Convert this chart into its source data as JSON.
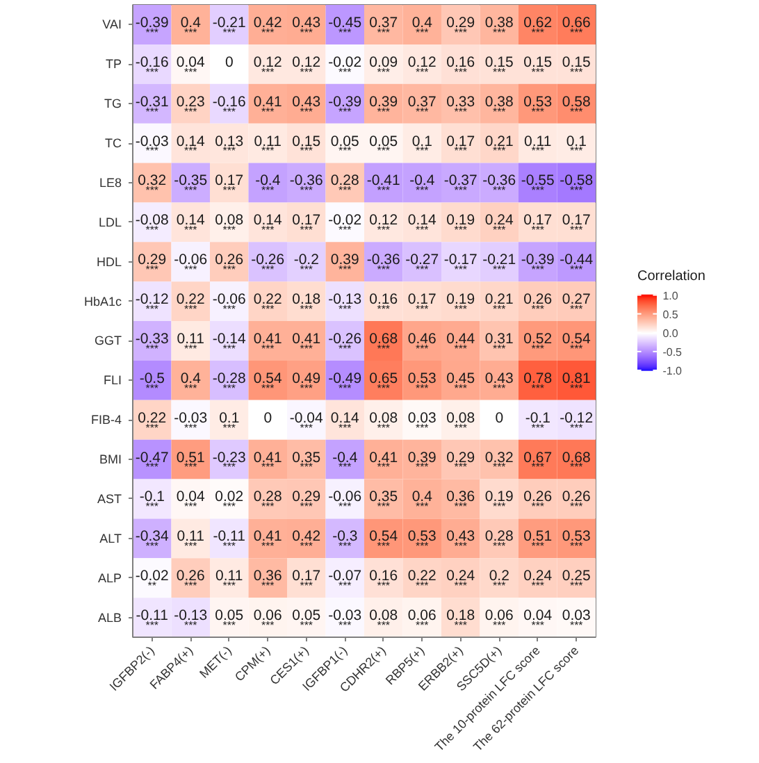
{
  "chart_data": {
    "type": "heatmap",
    "clabel": "Correlation",
    "clim": [
      -1,
      1
    ],
    "cticks": [
      {
        "value": 1,
        "label": "1.0"
      },
      {
        "value": 0.5,
        "label": "0.5"
      },
      {
        "value": 0,
        "label": "0.0"
      },
      {
        "value": -0.5,
        "label": "-0.5"
      },
      {
        "value": -1,
        "label": "-1.0"
      }
    ],
    "categories": [
      "IGFBP2(-)",
      "FABP4(+)",
      "MET(-)",
      "CPM(+)",
      "CES1(+)",
      "IGFBP1(-)",
      "CDHR2(+)",
      "RBP5(+)",
      "ERBB2(+)",
      "SSC5D(+)",
      "The 10-protein LFC score",
      "The 62-protein LFC score"
    ],
    "y_categories": [
      "VAI",
      "TP",
      "TG",
      "TC",
      "LE8",
      "LDL",
      "HDL",
      "HbA1c",
      "GGT",
      "FLI",
      "FIB-4",
      "BMI",
      "AST",
      "ALT",
      "ALP",
      "ALB"
    ],
    "cells": [
      [
        -0.39,
        0.4,
        -0.21,
        0.42,
        0.43,
        -0.45,
        0.37,
        0.4,
        0.29,
        0.38,
        0.62,
        0.66
      ],
      [
        -0.16,
        0.04,
        0,
        0.12,
        0.12,
        -0.02,
        0.09,
        0.12,
        0.16,
        0.15,
        0.15,
        0.15
      ],
      [
        -0.31,
        0.23,
        -0.16,
        0.41,
        0.43,
        -0.39,
        0.39,
        0.37,
        0.33,
        0.38,
        0.53,
        0.58
      ],
      [
        -0.03,
        0.14,
        0.13,
        0.11,
        0.15,
        0.05,
        0.05,
        0.1,
        0.17,
        0.21,
        0.11,
        0.1
      ],
      [
        0.32,
        -0.35,
        0.17,
        -0.4,
        -0.36,
        0.28,
        -0.41,
        -0.4,
        -0.37,
        -0.36,
        -0.55,
        -0.58
      ],
      [
        -0.08,
        0.14,
        0.08,
        0.14,
        0.17,
        -0.02,
        0.12,
        0.14,
        0.19,
        0.24,
        0.17,
        0.17
      ],
      [
        0.29,
        -0.06,
        0.26,
        -0.26,
        -0.2,
        0.39,
        -0.36,
        -0.27,
        -0.17,
        -0.21,
        -0.39,
        -0.44
      ],
      [
        -0.12,
        0.22,
        -0.06,
        0.22,
        0.18,
        -0.13,
        0.16,
        0.17,
        0.19,
        0.21,
        0.26,
        0.27
      ],
      [
        -0.33,
        0.11,
        -0.14,
        0.41,
        0.41,
        -0.26,
        0.68,
        0.46,
        0.44,
        0.31,
        0.52,
        0.54
      ],
      [
        -0.5,
        0.4,
        -0.28,
        0.54,
        0.49,
        -0.49,
        0.65,
        0.53,
        0.45,
        0.43,
        0.78,
        0.81
      ],
      [
        0.22,
        -0.03,
        0.1,
        0,
        -0.04,
        0.14,
        0.08,
        0.03,
        0.08,
        0,
        -0.1,
        -0.12
      ],
      [
        -0.47,
        0.51,
        -0.23,
        0.41,
        0.35,
        -0.4,
        0.41,
        0.39,
        0.29,
        0.32,
        0.67,
        0.68
      ],
      [
        -0.1,
        0.04,
        0.02,
        0.28,
        0.29,
        -0.06,
        0.35,
        0.4,
        0.36,
        0.19,
        0.26,
        0.26
      ],
      [
        -0.34,
        0.11,
        -0.11,
        0.41,
        0.42,
        -0.3,
        0.54,
        0.53,
        0.43,
        0.28,
        0.51,
        0.53
      ],
      [
        -0.02,
        0.26,
        0.11,
        0.36,
        0.17,
        -0.07,
        0.16,
        0.22,
        0.24,
        0.2,
        0.24,
        0.25
      ],
      [
        -0.11,
        -0.13,
        0.05,
        0.06,
        0.05,
        -0.03,
        0.08,
        0.06,
        0.18,
        0.06,
        0.04,
        0.03
      ]
    ],
    "cell_labels": [
      [
        "-0.39\n***",
        "0.4\n***",
        "-0.21\n***",
        "0.42\n***",
        "0.43\n***",
        "-0.45\n***",
        "0.37\n***",
        "0.4\n***",
        "0.29\n***",
        "0.38\n***",
        "0.62\n***",
        "0.66\n***"
      ],
      [
        "-0.16\n***",
        "0.04\n***",
        "0",
        "0.12\n***",
        "0.12\n***",
        "-0.02\n***",
        "0.09\n***",
        "0.12\n***",
        "0.16\n***",
        "0.15\n***",
        "0.15\n***",
        "0.15\n***"
      ],
      [
        "-0.31\n***",
        "0.23\n***",
        "-0.16\n***",
        "0.41\n***",
        "0.43\n***",
        "-0.39\n***",
        "0.39\n***",
        "0.37\n***",
        "0.33\n***",
        "0.38\n***",
        "0.53\n***",
        "0.58\n***"
      ],
      [
        "-0.03\n***",
        "0.14\n***",
        "0.13\n***",
        "0.11\n***",
        "0.15\n***",
        "0.05\n***",
        "0.05\n***",
        "0.1\n***",
        "0.17\n***",
        "0.21\n***",
        "0.11\n***",
        "0.1\n***"
      ],
      [
        "0.32\n***",
        "-0.35\n***",
        "0.17\n***",
        "-0.4\n***",
        "-0.36\n***",
        "0.28\n***",
        "-0.41\n***",
        "-0.4\n***",
        "-0.37\n***",
        "-0.36\n***",
        "-0.55\n***",
        "-0.58\n***"
      ],
      [
        "-0.08\n***",
        "0.14\n***",
        "0.08\n***",
        "0.14\n***",
        "0.17\n***",
        "-0.02\n***",
        "0.12\n***",
        "0.14\n***",
        "0.19\n***",
        "0.24\n***",
        "0.17\n***",
        "0.17\n***"
      ],
      [
        "0.29\n***",
        "-0.06\n***",
        "0.26\n***",
        "-0.26\n***",
        "-0.2\n***",
        "0.39\n***",
        "-0.36\n***",
        "-0.27\n***",
        "-0.17\n***",
        "-0.21\n***",
        "-0.39\n***",
        "-0.44\n***"
      ],
      [
        "-0.12\n***",
        "0.22\n***",
        "-0.06\n***",
        "0.22\n***",
        "0.18\n***",
        "-0.13\n***",
        "0.16\n***",
        "0.17\n***",
        "0.19\n***",
        "0.21\n***",
        "0.26\n***",
        "0.27\n***"
      ],
      [
        "-0.33\n***",
        "0.11\n***",
        "-0.14\n***",
        "0.41\n***",
        "0.41\n***",
        "-0.26\n***",
        "0.68\n***",
        "0.46\n***",
        "0.44\n***",
        "0.31\n***",
        "0.52\n***",
        "0.54\n***"
      ],
      [
        "-0.5\n***",
        "0.4\n***",
        "-0.28\n***",
        "0.54\n***",
        "0.49\n***",
        "-0.49\n***",
        "0.65\n***",
        "0.53\n***",
        "0.45\n***",
        "0.43\n***",
        "0.78\n***",
        "0.81\n***"
      ],
      [
        "0.22\n***",
        "-0.03\n***",
        "0.1\n***",
        "0",
        "-0.04\n***",
        "0.14\n***",
        "0.08\n***",
        "0.03\n***",
        "0.08\n***",
        "0",
        "-0.1\n***",
        "-0.12\n***"
      ],
      [
        "-0.47\n***",
        "0.51\n***",
        "-0.23\n***",
        "0.41\n***",
        "0.35\n***",
        "-0.4\n***",
        "0.41\n***",
        "0.39\n***",
        "0.29\n***",
        "0.32\n***",
        "0.67\n***",
        "0.68\n***"
      ],
      [
        "-0.1\n***",
        "0.04\n***",
        "0.02\n***",
        "0.28\n***",
        "0.29\n***",
        "-0.06\n***",
        "0.35\n***",
        "0.4\n***",
        "0.36\n***",
        "0.19\n***",
        "0.26\n***",
        "0.26\n***"
      ],
      [
        "-0.34\n***",
        "0.11\n***",
        "-0.11\n***",
        "0.41\n***",
        "0.42\n***",
        "-0.3\n***",
        "0.54\n***",
        "0.53\n***",
        "0.43\n***",
        "0.28\n***",
        "0.51\n***",
        "0.53\n***"
      ],
      [
        "-0.02\n**",
        "0.26\n***",
        "0.11\n***",
        "0.36\n***",
        "0.17\n***",
        "-0.07\n***",
        "0.16\n***",
        "0.22\n***",
        "0.24\n***",
        "0.2\n***",
        "0.24\n***",
        "0.25\n***"
      ],
      [
        "-0.11\n***",
        "-0.13\n***",
        "0.05\n***",
        "0.06\n***",
        "0.05\n***",
        "-0.03\n***",
        "0.08\n***",
        "0.06\n***",
        "0.18\n***",
        "0.06\n***",
        "0.04\n***",
        "0.03\n***"
      ]
    ]
  }
}
